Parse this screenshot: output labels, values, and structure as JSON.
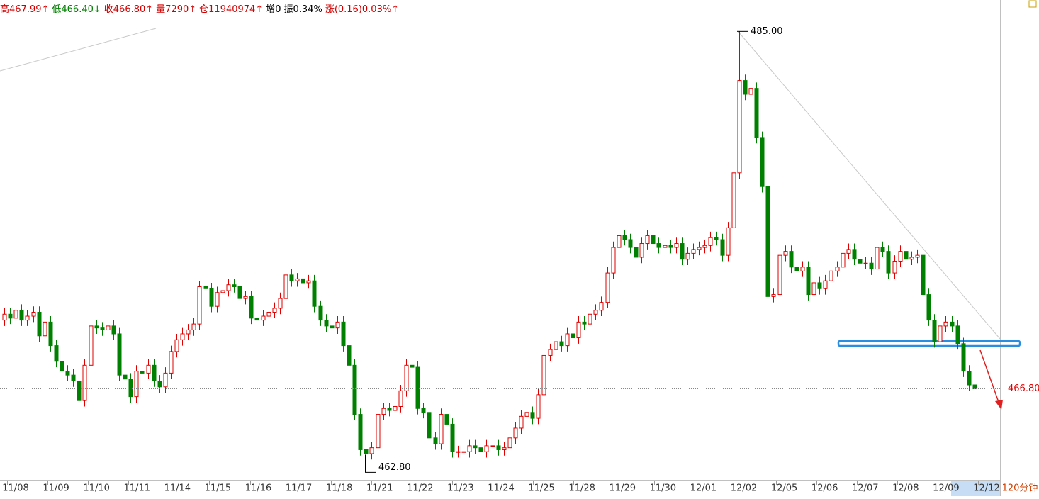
{
  "chart_data": {
    "type": "candlestick",
    "header": [
      {
        "text": "高467.99↑",
        "color": "#d00000"
      },
      {
        "text": "低466.40↓",
        "color": "#008000"
      },
      {
        "text": "收466.80↑",
        "color": "#d00000"
      },
      {
        "text": "量7290↑",
        "color": "#d00000"
      },
      {
        "text": "仓11940974↑",
        "color": "#d00000"
      },
      {
        "text": "增0",
        "color": "#000000"
      },
      {
        "text": "振0.34%",
        "color": "#000000"
      },
      {
        "text": "涨(0.16)0.03%↑",
        "color": "#d00000"
      }
    ],
    "period": "120分钟",
    "x_labels": [
      "11/08",
      "11/09",
      "11/10",
      "11/11",
      "11/14",
      "11/15",
      "11/16",
      "11/17",
      "11/18",
      "11/21",
      "11/22",
      "11/23",
      "11/24",
      "11/25",
      "11/28",
      "11/29",
      "11/30",
      "12/01",
      "12/02",
      "12/05",
      "12/06",
      "12/07",
      "12/08",
      "12/09",
      "12/12"
    ],
    "ylim": [
      462.2,
      486.6
    ],
    "up_color": "#e00000",
    "down_color": "#008000",
    "price_labels": [
      {
        "value": 485,
        "label": "485.00",
        "color": "#000000"
      },
      {
        "value": 462.8,
        "label": "462.80",
        "color": "#000000"
      },
      {
        "value": 466.8,
        "label": "466.80",
        "color": "#e00000"
      }
    ],
    "open": [
      470.3,
      470.6,
      470.4,
      470.8,
      470.3,
      470.5,
      470.7,
      469.5,
      470.2,
      469.0,
      468.2,
      467.7,
      467.5,
      467.2,
      466.2,
      468.0,
      470.0,
      469.9,
      469.8,
      470.0,
      469.6,
      467.5,
      467.3,
      466.4,
      467.7,
      467.6,
      468.0,
      467.2,
      466.9,
      467.6,
      468.7,
      469.3,
      469.6,
      469.8,
      470.1,
      472.0,
      471.9,
      471.0,
      471.7,
      471.8,
      472.1,
      472.0,
      471.4,
      471.5,
      470.4,
      470.3,
      470.5,
      470.7,
      470.9,
      471.4,
      472.6,
      472.3,
      472.4,
      472.2,
      472.3,
      471.0,
      470.3,
      470.0,
      469.9,
      470.2,
      469.0,
      468.0,
      465.5,
      463.7,
      463.5,
      463.8,
      465.5,
      465.8,
      465.7,
      465.9,
      466.7,
      468.0,
      467.9,
      465.8,
      465.6,
      464.3,
      464.0,
      465.5,
      465.0,
      463.6,
      463.6,
      463.6,
      463.9,
      463.8,
      463.6,
      463.9,
      463.9,
      463.7,
      463.8,
      464.3,
      464.8,
      465.4,
      465.6,
      465.3,
      466.5,
      468.5,
      468.8,
      469.2,
      469.0,
      469.6,
      469.4,
      470.2,
      470.1,
      470.6,
      470.8,
      471.2,
      472.7,
      474.0,
      474.6,
      474.4,
      474.0,
      473.5,
      474.2,
      474.6,
      474.2,
      474.0,
      474.1,
      474.0,
      474.2,
      473.4,
      473.7,
      473.9,
      474.0,
      474.1,
      474.5,
      474.4,
      473.6,
      475.0,
      477.8,
      482.5,
      481.8,
      482.1,
      479.6,
      477.1,
      471.5,
      471.6,
      473.6,
      473.8,
      473.0,
      472.8,
      473.0,
      471.6,
      472.2,
      471.9,
      472.3,
      472.8,
      473.0,
      473.7,
      473.9,
      473.4,
      473.2,
      473.2,
      472.9,
      474.0,
      473.8,
      472.7,
      473.3,
      473.8,
      473.4,
      473.5,
      473.6,
      471.6,
      470.3,
      469.2,
      470.0,
      470.2,
      470.0,
      469.1,
      467.7,
      467.0
    ],
    "high": [
      470.9,
      470.9,
      471.1,
      471.1,
      470.8,
      471.0,
      471.0,
      470.5,
      470.5,
      469.3,
      468.5,
      468.0,
      467.8,
      467.5,
      468.3,
      470.3,
      470.3,
      470.2,
      470.3,
      470.3,
      469.9,
      467.8,
      467.6,
      468.0,
      468.0,
      468.3,
      468.3,
      467.5,
      467.9,
      469.0,
      469.6,
      469.9,
      470.1,
      470.4,
      472.3,
      472.3,
      472.2,
      472.0,
      472.1,
      472.4,
      472.4,
      472.3,
      471.8,
      471.8,
      470.7,
      470.8,
      471.0,
      471.2,
      471.7,
      472.9,
      472.9,
      472.7,
      472.7,
      472.6,
      472.6,
      471.3,
      470.6,
      470.3,
      470.5,
      470.5,
      469.3,
      468.3,
      465.8,
      464.0,
      464.1,
      465.8,
      466.1,
      466.1,
      466.2,
      467.0,
      468.3,
      468.3,
      468.2,
      466.1,
      465.9,
      464.6,
      465.8,
      465.8,
      465.3,
      463.9,
      463.9,
      464.2,
      464.2,
      464.1,
      464.2,
      464.2,
      464.2,
      464.1,
      464.6,
      465.1,
      465.7,
      465.9,
      465.9,
      466.8,
      468.8,
      469.1,
      469.5,
      469.5,
      469.9,
      469.9,
      470.5,
      470.5,
      470.9,
      471.1,
      471.5,
      473.0,
      474.3,
      474.9,
      474.9,
      474.7,
      474.3,
      474.5,
      474.9,
      474.9,
      474.5,
      474.4,
      474.4,
      474.5,
      474.5,
      474.0,
      474.2,
      474.3,
      474.4,
      474.8,
      474.8,
      474.7,
      475.3,
      478.1,
      485.0,
      482.8,
      482.4,
      482.4,
      479.9,
      477.4,
      471.9,
      473.9,
      474.1,
      474.1,
      473.3,
      473.3,
      473.3,
      472.5,
      472.5,
      472.6,
      473.1,
      473.3,
      474.0,
      474.2,
      474.2,
      473.7,
      473.5,
      473.5,
      474.3,
      474.3,
      474.1,
      473.6,
      474.1,
      474.1,
      473.8,
      473.9,
      473.9,
      471.9,
      470.6,
      470.3,
      470.5,
      470.5,
      470.3,
      469.4,
      468.0,
      467.99
    ],
    "low": [
      470.0,
      470.1,
      470.1,
      470.0,
      470.0,
      470.2,
      469.2,
      469.2,
      468.7,
      467.9,
      467.4,
      467.2,
      466.9,
      465.9,
      465.9,
      467.7,
      469.6,
      469.5,
      469.5,
      469.3,
      467.2,
      467.0,
      466.1,
      466.1,
      467.3,
      467.3,
      466.9,
      466.6,
      466.6,
      467.3,
      468.4,
      469.0,
      469.3,
      469.5,
      469.8,
      471.6,
      470.7,
      470.7,
      471.4,
      471.5,
      471.7,
      471.1,
      471.1,
      470.1,
      470.0,
      470.0,
      470.2,
      470.4,
      470.6,
      471.1,
      472.0,
      472.0,
      471.9,
      471.9,
      470.7,
      470.0,
      469.7,
      469.6,
      469.6,
      468.7,
      467.7,
      465.2,
      463.4,
      462.8,
      463.2,
      463.5,
      465.2,
      465.4,
      465.4,
      465.6,
      466.4,
      467.6,
      465.5,
      465.3,
      464.0,
      463.7,
      463.7,
      464.7,
      463.3,
      463.3,
      463.3,
      463.3,
      463.5,
      463.3,
      463.3,
      463.6,
      463.4,
      463.4,
      463.5,
      464.0,
      464.5,
      465.1,
      465.0,
      465.0,
      466.2,
      468.2,
      468.5,
      468.7,
      468.7,
      469.1,
      469.1,
      469.8,
      469.8,
      470.3,
      470.5,
      470.9,
      472.4,
      473.7,
      474.1,
      473.7,
      473.2,
      473.2,
      473.9,
      473.9,
      473.7,
      473.7,
      473.7,
      473.7,
      473.1,
      473.1,
      473.4,
      473.6,
      473.7,
      473.8,
      474.1,
      473.3,
      473.3,
      474.7,
      477.5,
      481.5,
      481.5,
      479.3,
      476.8,
      471.2,
      471.2,
      471.3,
      473.3,
      472.7,
      472.5,
      472.5,
      471.3,
      471.3,
      471.6,
      471.6,
      472.0,
      472.5,
      472.7,
      473.4,
      473.1,
      472.9,
      472.9,
      472.6,
      472.6,
      473.5,
      472.4,
      472.4,
      473.0,
      473.1,
      473.1,
      473.2,
      471.3,
      470.0,
      468.9,
      468.9,
      469.7,
      469.7,
      468.8,
      467.4,
      466.7,
      466.4
    ],
    "close": [
      470.6,
      470.4,
      470.8,
      470.3,
      470.5,
      470.7,
      469.5,
      470.2,
      469.0,
      468.2,
      467.7,
      467.5,
      467.2,
      466.2,
      468.0,
      470.0,
      469.9,
      469.8,
      470.0,
      469.6,
      467.5,
      467.3,
      466.4,
      467.7,
      467.6,
      468.0,
      467.2,
      466.9,
      467.6,
      468.7,
      469.3,
      469.6,
      469.8,
      470.1,
      472.0,
      471.9,
      471.0,
      471.7,
      471.8,
      472.1,
      472.0,
      471.4,
      471.5,
      470.4,
      470.3,
      470.5,
      470.7,
      470.9,
      471.4,
      472.6,
      472.3,
      472.4,
      472.2,
      472.3,
      471.0,
      470.3,
      470.0,
      469.9,
      470.2,
      469.0,
      468.0,
      465.5,
      463.7,
      463.5,
      463.8,
      465.5,
      465.8,
      465.7,
      465.9,
      466.7,
      468.0,
      467.9,
      465.8,
      465.6,
      464.3,
      464.0,
      465.5,
      465.0,
      463.6,
      463.6,
      463.6,
      463.9,
      463.8,
      463.6,
      463.9,
      463.9,
      463.7,
      463.8,
      464.3,
      464.8,
      465.4,
      465.6,
      465.3,
      466.5,
      468.5,
      468.8,
      469.2,
      469.0,
      469.6,
      469.4,
      470.2,
      470.1,
      470.6,
      470.8,
      471.2,
      472.7,
      474.0,
      474.6,
      474.4,
      474.0,
      473.5,
      474.2,
      474.6,
      474.2,
      474.0,
      474.1,
      474.0,
      474.2,
      473.4,
      473.7,
      473.9,
      474.0,
      474.1,
      474.5,
      474.4,
      473.6,
      475.0,
      477.8,
      482.5,
      481.8,
      482.1,
      479.6,
      477.1,
      471.5,
      471.6,
      473.6,
      473.8,
      473.0,
      472.8,
      473.0,
      471.6,
      472.2,
      471.9,
      472.3,
      472.8,
      473.0,
      473.7,
      473.9,
      473.4,
      473.2,
      473.2,
      472.9,
      474.0,
      473.8,
      472.7,
      473.3,
      473.8,
      473.4,
      473.5,
      473.6,
      471.6,
      470.3,
      469.2,
      470.0,
      470.2,
      470.0,
      469.1,
      467.7,
      467.0,
      466.8
    ]
  }
}
